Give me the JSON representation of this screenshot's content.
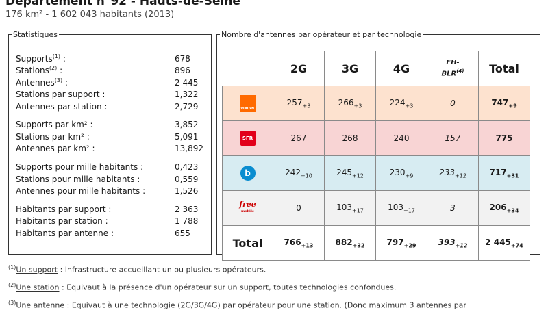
{
  "header": {
    "title": "Département n°92 - Hauts-de-Seine",
    "subtitle": "176 km² - 1 602 043 habitants (2013)"
  },
  "stats": {
    "legend": "Statistiques",
    "groups": [
      [
        {
          "label": "Supports",
          "note": "(1)",
          "suffix": " :",
          "value": "678"
        },
        {
          "label": "Stations",
          "note": "(2)",
          "suffix": " :",
          "value": "896"
        },
        {
          "label": "Antennes",
          "note": "(3)",
          "suffix": " :",
          "value": "2 445"
        },
        {
          "label": "Stations par support :",
          "value": "1,322"
        },
        {
          "label": "Antennes par station :",
          "value": "2,729"
        }
      ],
      [
        {
          "label": "Supports par km² :",
          "value": "3,852"
        },
        {
          "label": "Stations par km² :",
          "value": "5,091"
        },
        {
          "label": "Antennes par km² :",
          "value": "13,892"
        }
      ],
      [
        {
          "label": "Supports pour mille habitants :",
          "value": "0,423"
        },
        {
          "label": "Stations pour mille habitants :",
          "value": "0,559"
        },
        {
          "label": "Antennes pour mille habitants :",
          "value": "1,526"
        }
      ],
      [
        {
          "label": "Habitants par support :",
          "value": "2 363"
        },
        {
          "label": "Habitants par station :",
          "value": "1 788"
        },
        {
          "label": "Habitants par antenne :",
          "value": "655"
        }
      ]
    ]
  },
  "antennas": {
    "legend": "Nombre d'antennes par opérateur et par technologie",
    "headers": {
      "g2": "2G",
      "g3": "3G",
      "g4": "4G",
      "fh_line1": "FH-",
      "fh_line2": "BLR",
      "fh_note": "(4)",
      "total": "Total"
    },
    "rows": [
      {
        "operator": "orange",
        "logo_text": "orange",
        "g2": {
          "v": "257",
          "d": "+3"
        },
        "g3": {
          "v": "266",
          "d": "+3"
        },
        "g4": {
          "v": "224",
          "d": "+3"
        },
        "fh": {
          "v": "0",
          "d": ""
        },
        "total": {
          "v": "747",
          "d": "+9"
        }
      },
      {
        "operator": "sfr",
        "logo_text": "SFR",
        "g2": {
          "v": "267",
          "d": ""
        },
        "g3": {
          "v": "268",
          "d": ""
        },
        "g4": {
          "v": "240",
          "d": ""
        },
        "fh": {
          "v": "157",
          "d": ""
        },
        "total": {
          "v": "775",
          "d": ""
        }
      },
      {
        "operator": "bouygues",
        "logo_text": "b",
        "g2": {
          "v": "242",
          "d": "+10"
        },
        "g3": {
          "v": "245",
          "d": "+12"
        },
        "g4": {
          "v": "230",
          "d": "+9"
        },
        "fh": {
          "v": "233",
          "d": "+12"
        },
        "total": {
          "v": "717",
          "d": "+31"
        }
      },
      {
        "operator": "free",
        "logo_text": "free",
        "logo_sub": "mobile",
        "g2": {
          "v": "0",
          "d": ""
        },
        "g3": {
          "v": "103",
          "d": "+17"
        },
        "g4": {
          "v": "103",
          "d": "+17"
        },
        "fh": {
          "v": "3",
          "d": ""
        },
        "total": {
          "v": "206",
          "d": "+34"
        }
      }
    ],
    "totals": {
      "label": "Total",
      "g2": {
        "v": "766",
        "d": "+13"
      },
      "g3": {
        "v": "882",
        "d": "+32"
      },
      "g4": {
        "v": "797",
        "d": "+29"
      },
      "fh": {
        "v": "393",
        "d": "+12"
      },
      "total": {
        "v": "2 445",
        "d": "+74"
      }
    }
  },
  "notes": [
    {
      "num": "(1)",
      "term": "Un support",
      "text": " : Infrastructure accueillant un ou plusieurs opérateurs."
    },
    {
      "num": "(2)",
      "term": "Une station",
      "text": " : Equivaut à la présence d'un opérateur sur un support, toutes technologies confondues."
    },
    {
      "num": "(3)",
      "term": "Une antenne",
      "text": " : Equivaut à une technologie (2G/3G/4G) par opérateur pour une station. (Donc maximum 3 antennes par"
    }
  ],
  "colors": {
    "orange": "#fde2cf",
    "sfr": "#f8d4d4",
    "bouygues": "#d7ecf2",
    "free": "#f2f2f2"
  }
}
